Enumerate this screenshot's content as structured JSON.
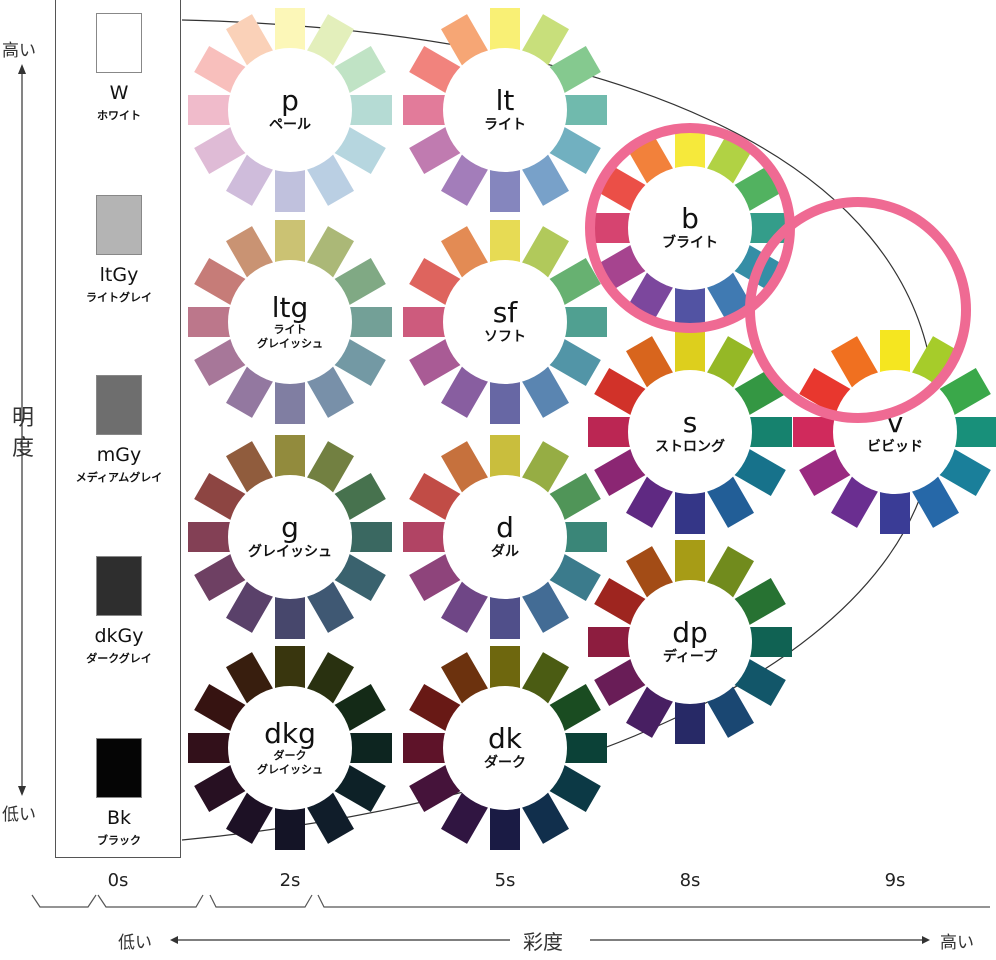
{
  "lightness_axis": {
    "high": "高い",
    "title": [
      "明",
      "度"
    ],
    "low": "低い"
  },
  "chroma_axis": {
    "low": "低い",
    "title": "彩度",
    "high": "高い"
  },
  "chroma_scale": [
    "0s",
    "2s",
    "5s",
    "8s",
    "9s"
  ],
  "achromatic": [
    {
      "code": "W",
      "name": "ホワイト",
      "color": "#ffffff"
    },
    {
      "code": "ltGy",
      "name": "ライトグレイ",
      "color": "#b4b4b4"
    },
    {
      "code": "mGy",
      "name": "メディアムグレイ",
      "color": "#6e6e6e"
    },
    {
      "code": "dkGy",
      "name": "ダークグレイ",
      "color": "#2e2e2e"
    },
    {
      "code": "Bk",
      "name": "ブラック",
      "color": "#050505"
    }
  ],
  "hues": [
    "#f5e620",
    "#a6cc2a",
    "#3aa84a",
    "#18907a",
    "#1a7f9a",
    "#2668a8",
    "#3a3c96",
    "#6a2e90",
    "#9a2a80",
    "#d02a5c",
    "#e8372e",
    "#f07020"
  ],
  "tones": [
    {
      "code": "p",
      "name": "ペール"
    },
    {
      "code": "lt",
      "name": "ライト"
    },
    {
      "code": "b",
      "name": "ブライト"
    },
    {
      "code": "ltg",
      "name": "ライト\nグレイッシュ"
    },
    {
      "code": "sf",
      "name": "ソフト"
    },
    {
      "code": "s",
      "name": "ストロング"
    },
    {
      "code": "v",
      "name": "ビビッド"
    },
    {
      "code": "g",
      "name": "グレイッシュ"
    },
    {
      "code": "d",
      "name": "ダル"
    },
    {
      "code": "dp",
      "name": "ディープ"
    },
    {
      "code": "dkg",
      "name": "ダーク\nグレイッシュ"
    },
    {
      "code": "dk",
      "name": "ダーク"
    }
  ],
  "highlight_color": "#ef6a93"
}
